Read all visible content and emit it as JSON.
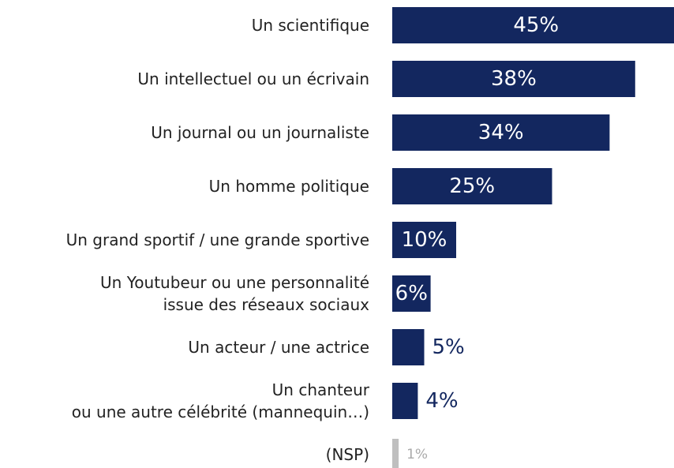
{
  "chart_data": {
    "type": "bar",
    "orientation": "horizontal",
    "categories": [
      "Un scientifique",
      "Un intellectuel ou un écrivain",
      "Un journal ou un journaliste",
      "Un homme politique",
      "Un grand sportif / une grande sportive",
      "Un Youtubeur ou une personnalité\nissue des réseaux sociaux",
      "Un acteur / une actrice",
      "Un chanteur\nou une autre célébrité (mannequin…)",
      "(NSP)"
    ],
    "values": [
      45,
      38,
      34,
      25,
      10,
      6,
      5,
      4,
      1
    ],
    "value_labels": [
      "45%",
      "38%",
      "34%",
      "25%",
      "10%",
      "6%",
      "5%",
      "4%",
      "1%"
    ],
    "colors": [
      "#13275f",
      "#13275f",
      "#13275f",
      "#13275f",
      "#13275f",
      "#13275f",
      "#13275f",
      "#13275f",
      "#bfbfbf"
    ]
  }
}
